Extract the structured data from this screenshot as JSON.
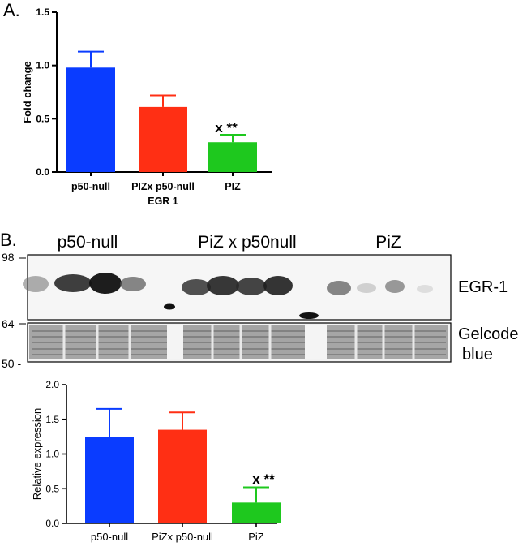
{
  "panel_a": {
    "letter": "A.",
    "significance": "x **"
  },
  "panel_b": {
    "letter": "B.",
    "blot": {
      "lane_group_labels": [
        "p50-null",
        "PiZ x p50null",
        "PiZ"
      ],
      "band_labels": [
        "EGR-1",
        "Gelcode",
        "blue"
      ],
      "mw_markers": [
        "98",
        "64",
        "50 -"
      ]
    },
    "significance": "x **"
  },
  "chart_data": [
    {
      "type": "bar",
      "title": "",
      "categories": [
        "p50-null",
        "PIZx p50-null",
        "PIZ"
      ],
      "xlabel": "EGR 1",
      "ylabel": "Fold change",
      "values": [
        0.98,
        0.61,
        0.28
      ],
      "errors": [
        0.15,
        0.11,
        0.07
      ],
      "colors": [
        "#0a3cff",
        "#ff2f14",
        "#1ec81e"
      ],
      "ylim": [
        0,
        1.5
      ],
      "yticks": [
        "0.0",
        "0.5",
        "1.0",
        "1.5"
      ],
      "grid": false,
      "legend": "none"
    },
    {
      "type": "bar",
      "title": "",
      "categories": [
        "p50-null",
        "PiZx p50-null",
        "PiZ"
      ],
      "xlabel": "",
      "ylabel": "Relative expression",
      "values": [
        1.25,
        1.35,
        0.3
      ],
      "errors": [
        0.4,
        0.25,
        0.22
      ],
      "colors": [
        "#0a3cff",
        "#ff2f14",
        "#1ec81e"
      ],
      "ylim": [
        0,
        2.0
      ],
      "yticks": [
        "0.0",
        "0.5",
        "1.0",
        "1.5",
        "2.0"
      ],
      "grid": false,
      "legend": "none"
    }
  ]
}
